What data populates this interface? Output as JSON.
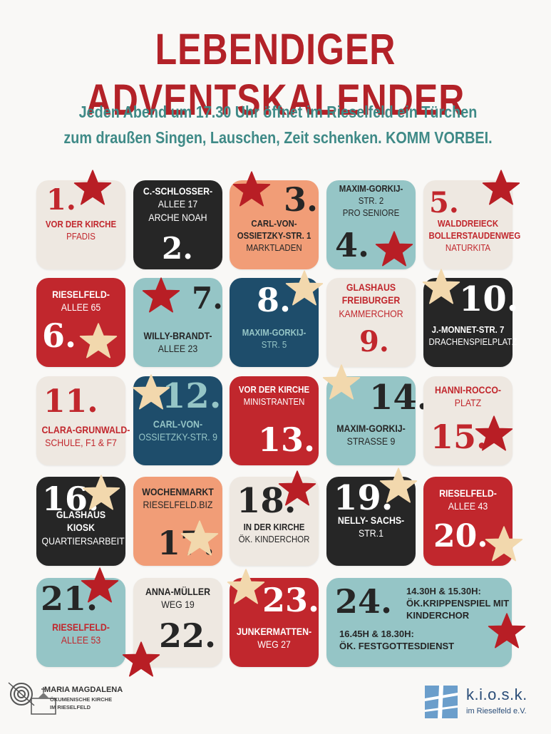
{
  "colors": {
    "title": "#b32228",
    "subtitle": "#3f8a87",
    "red": "#c1272d",
    "star_red": "#b81e25",
    "star_gold": "#f2d8ad",
    "cream": "#eee8e1",
    "black": "#262626",
    "teal": "#95c5c6",
    "navy": "#1e4d6b",
    "peach": "#f19d77",
    "white": "#ffffff"
  },
  "title": "LEBENDIGER ADVENTSKALENDER",
  "subtitle": {
    "line1": "Jeden Abend um 17.30 Uhr öffnet im Rieselfeld ein Türchen",
    "line2": "zum draußen Singen, Lauschen, Zeit schenken. KOMM VORBEI."
  },
  "days": [
    {
      "num": "1.",
      "lines": [
        "VOR DER KIRCHE",
        "PFADIS"
      ],
      "bg": "cream",
      "star": "red"
    },
    {
      "num": "2.",
      "lines": [
        "C.-SCHLOSSER-",
        "ALLEE 17",
        "ARCHE NOAH"
      ],
      "bg": "black",
      "star": null
    },
    {
      "num": "3.",
      "lines": [
        "CARL-VON-",
        "OSSIETZKY-STR. 1",
        "MARKTLADEN"
      ],
      "bg": "peach",
      "star": "red"
    },
    {
      "num": "4.",
      "lines": [
        "MAXIM-GORKIJ-",
        "STR. 2",
        "PRO SENIORE"
      ],
      "bg": "teal",
      "star": "red"
    },
    {
      "num": "5.",
      "lines": [
        "WALDDREIECK",
        "BOLLERSTAUDENWEG",
        "NATURKITA"
      ],
      "bg": "cream",
      "star": "red"
    },
    {
      "num": "6.",
      "lines": [
        "RIESELFELD-",
        "ALLEE 65"
      ],
      "bg": "red",
      "star": "gold"
    },
    {
      "num": "7.",
      "lines": [
        "WILLY-BRANDT-",
        "ALLEE 23"
      ],
      "bg": "teal",
      "star": "red"
    },
    {
      "num": "8.",
      "lines": [
        "MAXIM-GORKIJ-",
        "STR. 5"
      ],
      "bg": "navy",
      "star": "gold"
    },
    {
      "num": "9.",
      "lines": [
        "GLASHAUS",
        "FREIBURGER",
        "KAMMERCHOR"
      ],
      "bg": "cream",
      "star": null
    },
    {
      "num": "10.",
      "lines": [
        "J.-MONNET-STR. 7",
        "DRACHENSPIELPLATZ"
      ],
      "bg": "black",
      "star": "gold"
    },
    {
      "num": "11.",
      "lines": [
        "CLARA-GRUNWALD-",
        "SCHULE, F1 & F7"
      ],
      "bg": "cream",
      "star": null
    },
    {
      "num": "12.",
      "lines": [
        "CARL-VON-",
        "OSSIETZKY-STR. 9"
      ],
      "bg": "navy",
      "star": "gold"
    },
    {
      "num": "13.",
      "lines": [
        "VOR DER KIRCHE",
        "MINISTRANTEN"
      ],
      "bg": "red",
      "star": null
    },
    {
      "num": "14.",
      "lines": [
        "MAXIM-GORKIJ-",
        "STRASSE 9"
      ],
      "bg": "teal",
      "star": "gold"
    },
    {
      "num": "15.",
      "lines": [
        "HANNI-ROCCO-",
        "PLATZ"
      ],
      "bg": "cream",
      "star": "red"
    },
    {
      "num": "16.",
      "lines": [
        "GLASHAUS",
        "KIOSK",
        "QUARTIERSARBEIT"
      ],
      "bg": "black",
      "star": "gold"
    },
    {
      "num": "17.",
      "lines": [
        "WOCHENMARKT",
        "RIESELFELD.BIZ"
      ],
      "bg": "peach",
      "star": "gold"
    },
    {
      "num": "18.",
      "lines": [
        "IN DER KIRCHE",
        "ÖK. KINDERCHOR"
      ],
      "bg": "cream",
      "star": "red"
    },
    {
      "num": "19.",
      "lines": [
        "NELLY- SACHS-",
        "STR.1"
      ],
      "bg": "black",
      "star": "gold"
    },
    {
      "num": "20.",
      "lines": [
        "RIESELFELD-",
        "ALLEE 43"
      ],
      "bg": "red",
      "star": "gold"
    },
    {
      "num": "21.",
      "lines": [
        "RIESELFELD-",
        "ALLEE 53"
      ],
      "bg": "teal",
      "star": "red"
    },
    {
      "num": "22.",
      "lines": [
        "ANNA-MÜLLER",
        "WEG 19"
      ],
      "bg": "cream",
      "star": "red"
    },
    {
      "num": "23.",
      "lines": [
        "JUNKERMATTEN-",
        "WEG 27"
      ],
      "bg": "red",
      "star": "gold"
    },
    {
      "num": "24.",
      "lines": [
        "14.30H & 15.30H:",
        "ÖK.KRIPPENSPIEL MIT",
        "KINDERCHOR",
        "16.45H & 18.30H:",
        "ÖK. FESTGOTTESDIENST"
      ],
      "bg": "teal",
      "star": "red"
    }
  ],
  "logos": {
    "left_line1": "MARIA MAGDALENA",
    "left_line2": "ÖKUMENISCHE KIRCHE",
    "left_line3": "IM RIESELFELD",
    "right_name": "k.i.o.s.k.",
    "right_sub": "im Rieselfeld e.V."
  }
}
